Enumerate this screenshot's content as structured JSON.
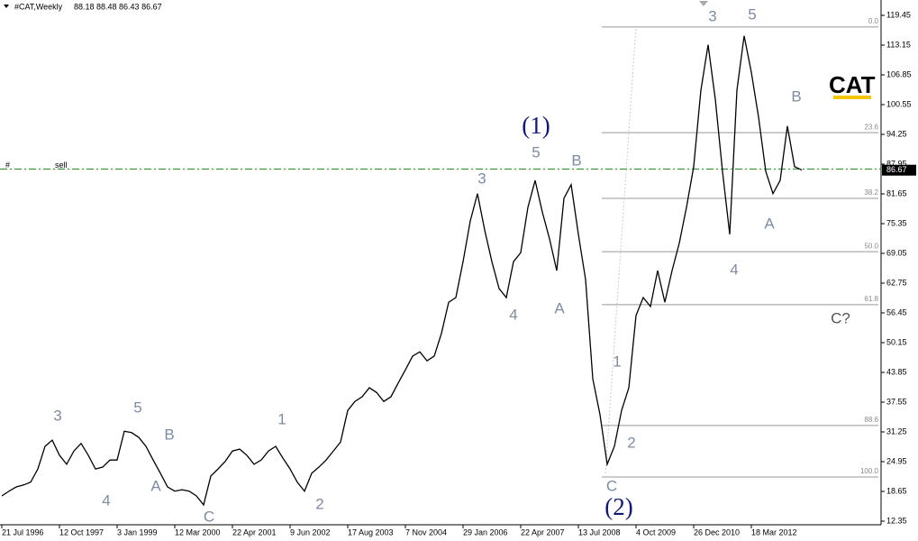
{
  "chart_data": {
    "type": "line",
    "title": "#CAT,Weekly",
    "subtitle": "88.18 88.48 86.43 86.67",
    "categories": [
      "21 Jul 1996",
      null,
      null,
      null,
      null,
      null,
      null,
      null,
      "12 Oct 1997",
      null,
      null,
      null,
      null,
      null,
      null,
      null,
      "3 Jan 1999",
      null,
      null,
      null,
      null,
      null,
      null,
      null,
      "12 Mar 2000",
      null,
      null,
      null,
      null,
      null,
      null,
      null,
      "22 Apr 2001",
      null,
      null,
      null,
      null,
      null,
      null,
      null,
      "9 Jun 2002",
      null,
      null,
      null,
      null,
      null,
      null,
      null,
      "17 Aug 2003",
      null,
      null,
      null,
      null,
      null,
      null,
      null,
      "7 Nov 2004",
      null,
      null,
      null,
      null,
      null,
      null,
      null,
      "29 Jan 2006",
      null,
      null,
      null,
      null,
      null,
      null,
      null,
      "22 Apr 2007",
      null,
      null,
      null,
      null,
      null,
      null,
      null,
      "13 Jul 2008",
      null,
      null,
      null,
      null,
      null,
      null,
      null,
      "4 Oct 2009",
      null,
      null,
      null,
      null,
      null,
      null,
      null,
      "26 Dec 2010",
      null,
      null,
      null,
      null,
      null,
      null,
      null,
      "18 Mar 2012",
      null,
      null,
      null,
      null,
      null,
      null,
      null
    ],
    "series": [
      {
        "name": "#CAT",
        "color": "#000000",
        "values": [
          17.7,
          18.7,
          19.6,
          20.0,
          20.6,
          23.4,
          28.2,
          29.5,
          26.3,
          24.4,
          27.2,
          28.8,
          26.3,
          23.4,
          23.8,
          25.3,
          25.3,
          31.4,
          31.1,
          30.1,
          28.2,
          25.3,
          22.5,
          19.6,
          18.7,
          19.0,
          18.7,
          17.7,
          15.8,
          21.9,
          23.4,
          25.0,
          27.2,
          27.6,
          26.3,
          24.4,
          25.3,
          27.2,
          28.2,
          25.7,
          23.4,
          20.6,
          18.7,
          22.5,
          23.8,
          25.3,
          27.2,
          29.1,
          35.8,
          37.7,
          38.7,
          40.6,
          39.6,
          37.7,
          38.7,
          41.6,
          44.4,
          47.3,
          48.2,
          46.3,
          47.3,
          52.1,
          58.7,
          59.7,
          67.3,
          75.9,
          81.7,
          74.0,
          67.3,
          61.6,
          59.7,
          67.3,
          69.2,
          78.8,
          84.5,
          77.8,
          72.1,
          65.4,
          80.7,
          83.6,
          73.1,
          63.5,
          42.5,
          34.9,
          24.4,
          28.2,
          35.8,
          40.6,
          55.9,
          59.7,
          57.8,
          65.4,
          58.7,
          65.4,
          71.2,
          78.8,
          87.4,
          103.6,
          113.2,
          101.7,
          86.4,
          73.1,
          103.6,
          115.1,
          107.4,
          97.9,
          86.4,
          81.7,
          84.5,
          96.0,
          87.4,
          86.7
        ]
      }
    ],
    "ylim": [
      10.06,
      122.7
    ],
    "yticks": [
      12.35,
      18.65,
      24.95,
      31.25,
      37.55,
      43.85,
      50.15,
      56.45,
      62.75,
      69.05,
      75.35,
      81.65,
      87.95,
      94.25,
      100.55,
      106.85,
      113.15,
      119.45
    ],
    "last_price": 86.67,
    "sell_line": {
      "prefix": "#",
      "label": "sell",
      "price": 86.9
    },
    "fib_levels": [
      {
        "label": "0.0",
        "price": 117.0
      },
      {
        "label": "23.6",
        "price": 94.6
      },
      {
        "label": "38.2",
        "price": 80.7
      },
      {
        "label": "50.0",
        "price": 69.4
      },
      {
        "label": "61.8",
        "price": 58.2
      },
      {
        "label": "88.6",
        "price": 32.6
      },
      {
        "label": "100.0",
        "price": 21.7
      }
    ],
    "logo": "CAT",
    "annotations": [
      "3",
      "4",
      "5",
      "B",
      "A",
      "C",
      "1",
      "2",
      "3",
      "4",
      "5",
      "(1)",
      "B",
      "A",
      "1",
      "2",
      "C",
      "(2)",
      "3",
      "5",
      "4",
      "A",
      "B",
      "C?"
    ]
  }
}
